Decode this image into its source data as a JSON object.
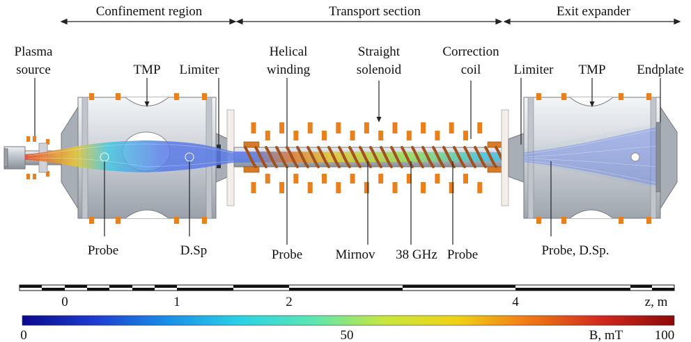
{
  "sections": {
    "confinement": "Confinement region",
    "transport": "Transport section",
    "exit": "Exit expander"
  },
  "labels": {
    "plasma_source_1": "Plasma",
    "plasma_source_2": "source",
    "tmp_left": "TMP",
    "limiter_left": "Limiter",
    "helical_1": "Helical",
    "helical_2": "winding",
    "straight_1": "Straight",
    "straight_2": "solenoid",
    "correction_1": "Correction",
    "correction_2": "coil",
    "limiter_right": "Limiter",
    "tmp_right": "TMP",
    "endplate": "Endplate",
    "probe_1": "Probe",
    "dsp_1": "D.Sp",
    "probe_2": "Probe",
    "mirnov": "Mirnov",
    "ghz": "38 GHz",
    "probe_3": "Probe",
    "probe_dsp": "Probe, D.Sp."
  },
  "z_scale": {
    "ticks": [
      "0",
      "1",
      "2",
      "4"
    ],
    "unit": "z, m"
  },
  "b_scale": {
    "min": "0",
    "mid": "50",
    "max": "100",
    "unit": "B, mT",
    "colors": [
      "#0a0a8c",
      "#1e3cd2",
      "#1a8ee6",
      "#28d2e6",
      "#5ae6b4",
      "#c8e63c",
      "#f0d214",
      "#f07814",
      "#d2281e",
      "#8c0a0a"
    ]
  },
  "colors": {
    "coil": "#e8801e",
    "coil_dark": "#b45a10",
    "helix": "#a0521e",
    "chamber": "#d4d8de",
    "plasma": "#6a86e8"
  }
}
